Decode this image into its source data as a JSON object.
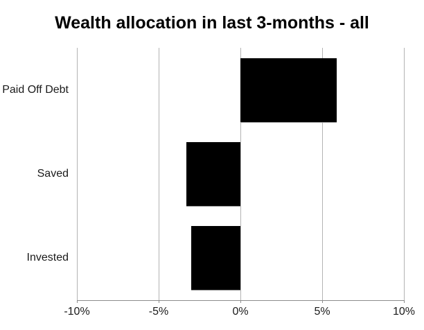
{
  "chart_data": {
    "type": "bar",
    "orientation": "horizontal",
    "title": "Wealth allocation in last 3-months - all",
    "categories": [
      "Paid Off Debt",
      "Saved",
      "Invested"
    ],
    "values": [
      5.9,
      -3.3,
      -3.0
    ],
    "value_unit": "%",
    "xlabel": "",
    "ylabel": "",
    "xlim": [
      -10,
      10
    ],
    "x_ticks": [
      {
        "value": -10,
        "label": "-10%"
      },
      {
        "value": -5,
        "label": "-5%"
      },
      {
        "value": 0,
        "label": "0%"
      },
      {
        "value": 5,
        "label": "5%"
      },
      {
        "value": 10,
        "label": "10%"
      }
    ],
    "grid": true,
    "legend": false,
    "bar_color": "#000000",
    "gridline_color": "#b3b3b3",
    "axis_color": "#8c8c8c",
    "title_color": "#000000",
    "label_color": "#1a1a1a",
    "background_color": "#ffffff"
  }
}
